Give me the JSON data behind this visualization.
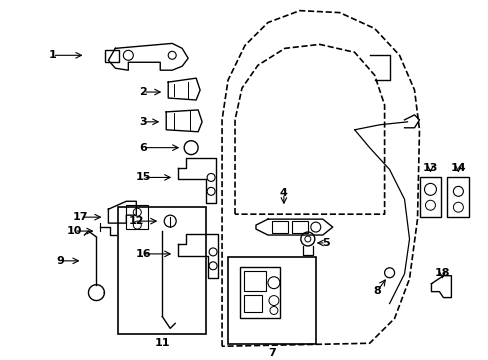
{
  "bg_color": "#ffffff",
  "lw": 1.0,
  "fig_w": 4.89,
  "fig_h": 3.6,
  "dpi": 100
}
